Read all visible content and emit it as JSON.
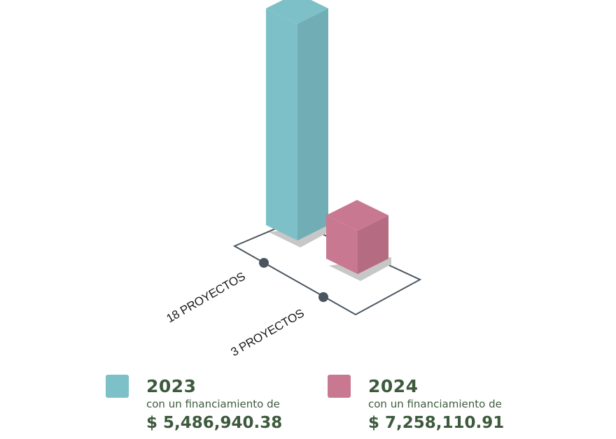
{
  "chart_data": {
    "type": "bar",
    "categories": [
      "18 PROYECTOS",
      "3 PROYECTOS"
    ],
    "values": [
      18,
      3
    ],
    "colors": [
      "#7dc0c8",
      "#c97891"
    ],
    "style": "isometric 3d"
  },
  "legend": [
    {
      "year": "2023",
      "description": "con un financiamiento de",
      "amount": "$ 5,486,940.38",
      "color": "#7dc0c8"
    },
    {
      "year": "2024",
      "description": "con un financiamiento de",
      "amount": "$ 7,258,110.91",
      "color": "#c97891"
    }
  ]
}
